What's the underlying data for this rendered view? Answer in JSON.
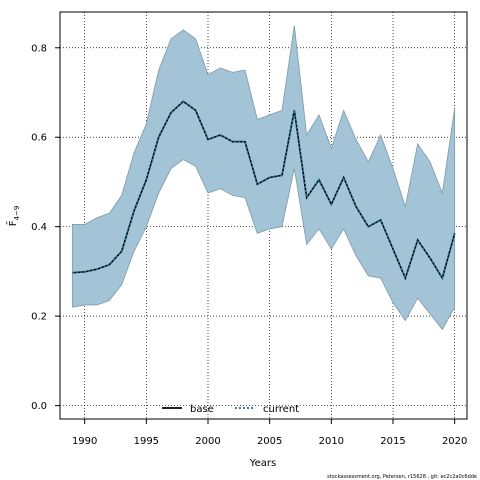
{
  "chart_data": {
    "type": "line",
    "xlabel": "Years",
    "ylabel": "F̄",
    "ylabel_sub": "4−9",
    "xlim": [
      1988,
      2021
    ],
    "ylim": [
      -0.03,
      0.88
    ],
    "xticks": [
      1990,
      1995,
      2000,
      2005,
      2010,
      2015,
      2020
    ],
    "yticks": [
      0.0,
      0.2,
      0.4,
      0.6,
      0.8
    ],
    "ytick_labels": [
      "0.0",
      "0.2",
      "0.4",
      "0.6",
      "0.8"
    ],
    "grid": true,
    "legend_position": "bottom",
    "x": [
      1989,
      1990,
      1991,
      1992,
      1993,
      1994,
      1995,
      1996,
      1997,
      1998,
      1999,
      2000,
      2001,
      2002,
      2003,
      2004,
      2005,
      2006,
      2007,
      2008,
      2009,
      2010,
      2011,
      2012,
      2013,
      2014,
      2015,
      2016,
      2017,
      2018,
      2019,
      2020
    ],
    "band": {
      "color": "#a2c4d6",
      "edge_color": "#7f9aa8",
      "upper": [
        0.405,
        0.405,
        0.42,
        0.43,
        0.47,
        0.565,
        0.63,
        0.75,
        0.82,
        0.84,
        0.82,
        0.74,
        0.755,
        0.745,
        0.75,
        0.64,
        0.65,
        0.66,
        0.85,
        0.605,
        0.65,
        0.575,
        0.66,
        0.595,
        0.545,
        0.605,
        0.53,
        0.445,
        0.585,
        0.545,
        0.475,
        0.665
      ],
      "lower": [
        0.22,
        0.225,
        0.225,
        0.235,
        0.27,
        0.345,
        0.4,
        0.475,
        0.53,
        0.55,
        0.535,
        0.475,
        0.485,
        0.47,
        0.465,
        0.385,
        0.395,
        0.4,
        0.53,
        0.36,
        0.395,
        0.35,
        0.395,
        0.335,
        0.29,
        0.285,
        0.23,
        0.19,
        0.24,
        0.205,
        0.17,
        0.22
      ]
    },
    "series": [
      {
        "name": "base",
        "color": "#000000",
        "style": "solid",
        "values": [
          0.297,
          0.299,
          0.305,
          0.315,
          0.345,
          0.435,
          0.505,
          0.6,
          0.655,
          0.68,
          0.66,
          0.595,
          0.605,
          0.59,
          0.59,
          0.495,
          0.51,
          0.515,
          0.66,
          0.465,
          0.505,
          0.45,
          0.51,
          0.445,
          0.4,
          0.415,
          0.35,
          0.285,
          0.37,
          0.33,
          0.285,
          0.385
        ]
      },
      {
        "name": "current",
        "color": "#1f6f9c",
        "style": "dotted",
        "values": [
          0.297,
          0.299,
          0.305,
          0.315,
          0.345,
          0.435,
          0.505,
          0.6,
          0.655,
          0.68,
          0.66,
          0.595,
          0.605,
          0.59,
          0.59,
          0.495,
          0.51,
          0.515,
          0.66,
          0.465,
          0.505,
          0.45,
          0.51,
          0.445,
          0.4,
          0.415,
          0.35,
          0.285,
          0.37,
          0.33,
          0.285,
          0.385
        ]
      }
    ]
  },
  "footer": "stockassessment.org, Petersen, r15628 , git: ec2c2a0c6dde"
}
